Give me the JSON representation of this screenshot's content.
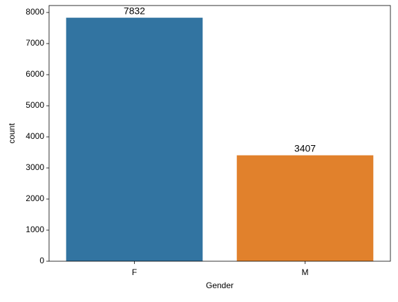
{
  "chart_data": {
    "type": "bar",
    "categories": [
      "F",
      "M"
    ],
    "values": [
      7832,
      3407
    ],
    "colors": [
      "#3274a1",
      "#e1812c"
    ],
    "xlabel": "Gender",
    "ylabel": "count",
    "ylim": [
      0,
      8223.6
    ],
    "yticks": [
      0,
      1000,
      2000,
      3000,
      4000,
      5000,
      6000,
      7000,
      8000
    ],
    "grid": false
  }
}
